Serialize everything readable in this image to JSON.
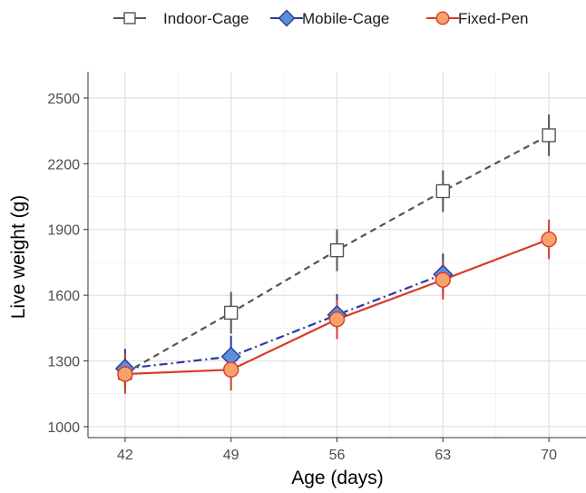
{
  "chart_data": {
    "type": "line",
    "xlabel": "Age (days)",
    "ylabel": "Live weight (g)",
    "x": [
      42,
      49,
      56,
      63,
      70
    ],
    "xticks": [
      "42",
      "49",
      "56",
      "63",
      "70"
    ],
    "yticks": [
      1000,
      1300,
      1600,
      1900,
      2200,
      2500
    ],
    "ylim": [
      950,
      2620
    ],
    "grid": true,
    "legend_position": "top",
    "series": [
      {
        "name": "Indoor-Cage",
        "marker": "square",
        "line_style": "dashed",
        "color": "#555555",
        "fill": "#ffffff",
        "x": [
          42,
          49,
          56,
          63,
          70
        ],
        "values": [
          1245,
          1520,
          1805,
          2075,
          2330
        ],
        "error_low": [
          1165,
          1425,
          1710,
          1980,
          2235
        ],
        "error_high": [
          1325,
          1615,
          1900,
          2170,
          2425
        ]
      },
      {
        "name": "Mobile-Cage",
        "marker": "diamond",
        "line_style": "dashdot",
        "color": "#2b3a9b",
        "fill": "#5b8fd6",
        "x": [
          42,
          49,
          56,
          63
        ],
        "values": [
          1265,
          1320,
          1510,
          1695
        ],
        "error_low": [
          1175,
          1225,
          1415,
          1600
        ],
        "error_high": [
          1355,
          1415,
          1605,
          1790
        ]
      },
      {
        "name": "Fixed-Pen",
        "marker": "circle",
        "line_style": "solid",
        "color": "#d93a2b",
        "fill": "#f5a36a",
        "x": [
          42,
          49,
          56,
          63,
          70
        ],
        "values": [
          1240,
          1260,
          1490,
          1670,
          1855
        ],
        "error_low": [
          1150,
          1165,
          1400,
          1580,
          1765
        ],
        "error_high": [
          1330,
          1355,
          1580,
          1760,
          1945
        ]
      }
    ]
  }
}
